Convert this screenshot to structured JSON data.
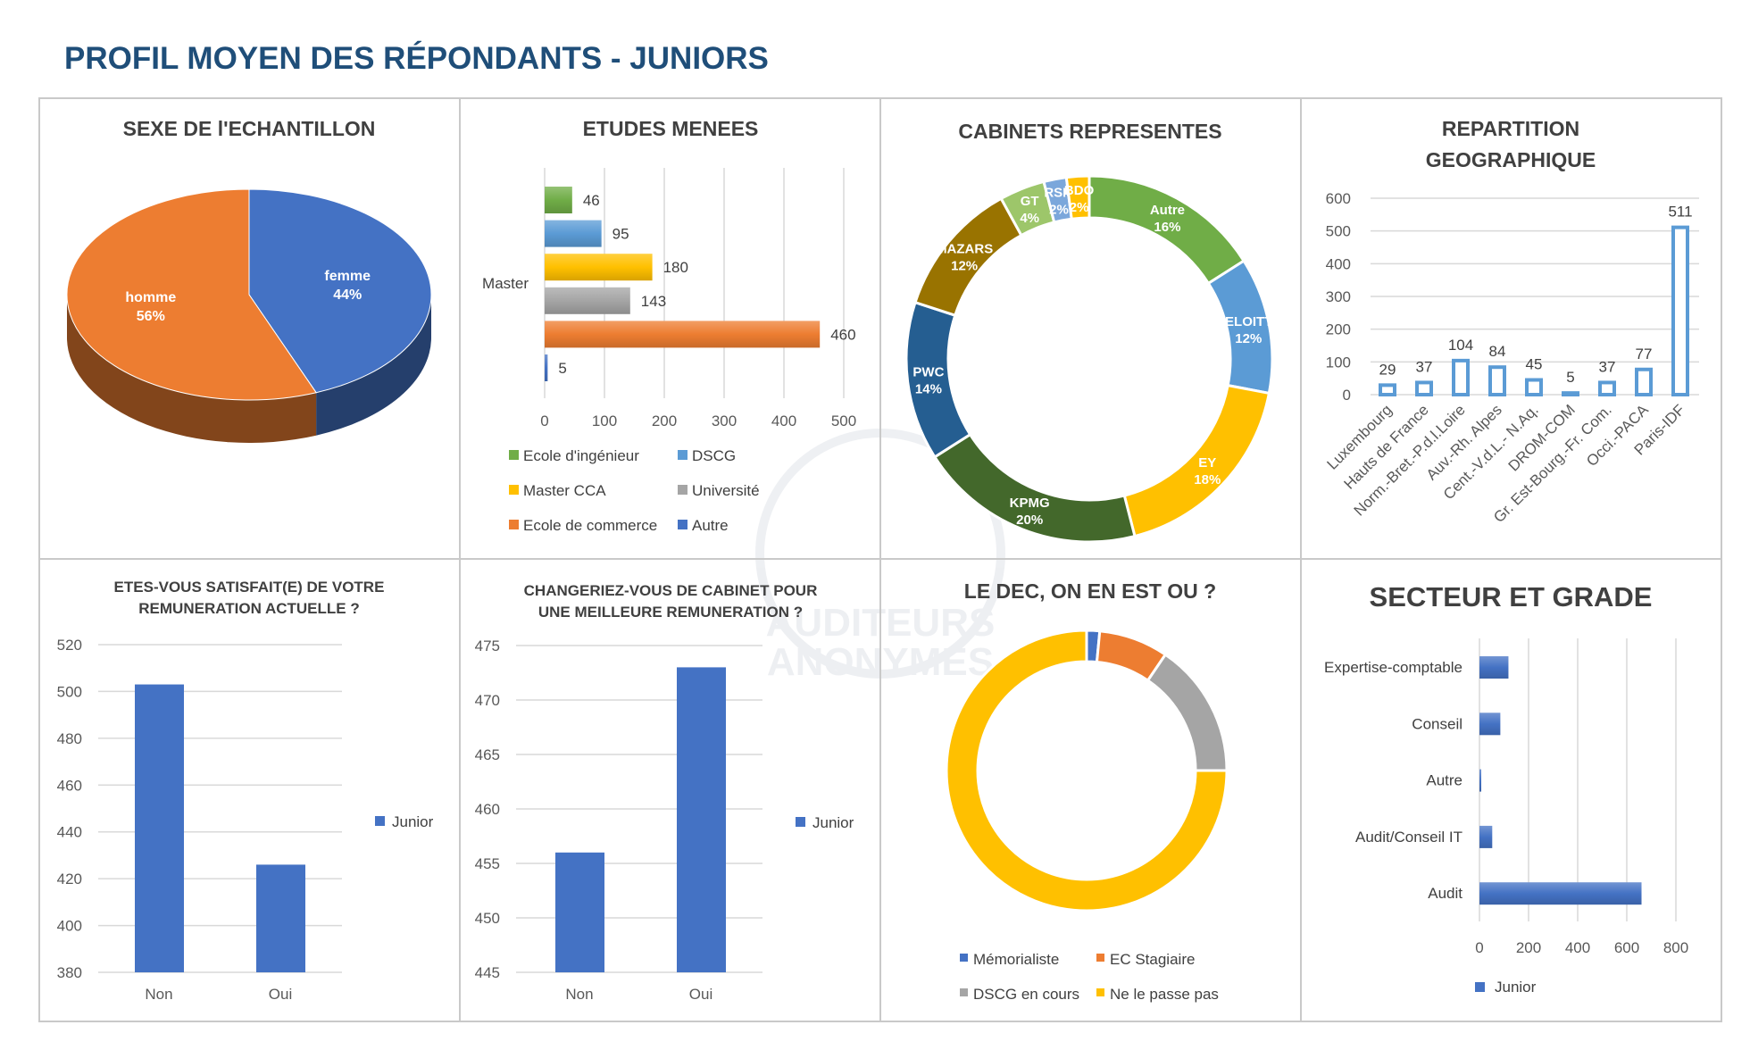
{
  "page_title": "PROFIL MOYEN DES RÉPONDANTS - JUNIORS",
  "watermark": [
    "AUDITEURS",
    "ANONYMES"
  ],
  "colors": {
    "title": "#1F4E79",
    "blue": "#4472C4",
    "orange": "#ED7D31",
    "grey": "#A5A5A5",
    "yellow": "#FFC000",
    "lightblue": "#5B9BD5",
    "green": "#70AD47"
  },
  "chart_data": [
    {
      "type": "pie",
      "title": "SEXE DE l'ECHANTILLON",
      "style": "3d",
      "slices": [
        {
          "label": "femme",
          "value": 44,
          "pct_label": "44%",
          "color": "#4472C4"
        },
        {
          "label": "homme",
          "value": 56,
          "pct_label": "56%",
          "color": "#ED7D31"
        }
      ]
    },
    {
      "type": "bar",
      "orientation": "horizontal",
      "title": "ETUDES MENEES",
      "category": "Master",
      "xlim": [
        0,
        500
      ],
      "ticks": [
        "0",
        "100",
        "200",
        "300",
        "400",
        "500"
      ],
      "grid": true,
      "legend": "bottom",
      "series": [
        {
          "name": "Ecole d'ingénieur",
          "value": 46,
          "color": "#70AD47"
        },
        {
          "name": "DSCG",
          "value": 95,
          "color": "#5B9BD5"
        },
        {
          "name": "Master CCA",
          "value": 180,
          "color": "#FFC000"
        },
        {
          "name": "Université",
          "value": 143,
          "color": "#A5A5A5"
        },
        {
          "name": "Ecole de commerce",
          "value": 460,
          "color": "#ED7D31"
        },
        {
          "name": "Autre",
          "value": 5,
          "color": "#4472C4"
        }
      ]
    },
    {
      "type": "pie",
      "style": "donut",
      "title": "CABINETS REPRESENTES",
      "slices": [
        {
          "label": "Autre",
          "value": 16,
          "pct_label": "16%",
          "color": "#70AD47"
        },
        {
          "label": "DELOITTE",
          "value": 12,
          "pct_label": "12%",
          "color": "#5B9BD5"
        },
        {
          "label": "EY",
          "value": 18,
          "pct_label": "18%",
          "color": "#FFC000"
        },
        {
          "label": "KPMG",
          "value": 20,
          "pct_label": "20%",
          "color": "#43682B"
        },
        {
          "label": "PWC",
          "value": 14,
          "pct_label": "14%",
          "color": "#255E91"
        },
        {
          "label": "MAZARS",
          "value": 12,
          "pct_label": "12%",
          "color": "#997300"
        },
        {
          "label": "GT",
          "value": 4,
          "pct_label": "4%",
          "color": "#9DC66A"
        },
        {
          "label": "RSM",
          "value": 2,
          "pct_label": "2%",
          "color": "#7BA7DB"
        },
        {
          "label": "BDO",
          "value": 2,
          "pct_label": "2%",
          "color": "#FFC000"
        }
      ]
    },
    {
      "type": "bar",
      "title": [
        "REPARTITION",
        "GEOGRAPHIQUE"
      ],
      "ylim": [
        0,
        600
      ],
      "ticks": [
        "0",
        "100",
        "200",
        "300",
        "400",
        "500",
        "600"
      ],
      "grid": true,
      "categories": [
        "Luxembourg",
        "Hauts de France",
        "Norm.-Bret.-P.d.l.Loire",
        "Auv.-Rh. Alpes",
        "Cent.-V.d.L.- N.Aq.",
        "DROM-COM",
        "Gr. Est-Bourg.-Fr. Com.",
        "Occi.-PACA",
        "Paris-IDF"
      ],
      "values": [
        29,
        37,
        104,
        84,
        45,
        5,
        37,
        77,
        511
      ],
      "value_labels": [
        "29",
        "37",
        "104",
        "84",
        "45",
        "5",
        "37",
        "77",
        "511"
      ],
      "color": "#5B9BD5"
    },
    {
      "type": "bar",
      "title": [
        "ETES-VOUS SATISFAIT(E) DE VOTRE",
        "REMUNERATION ACTUELLE ?"
      ],
      "ylim": [
        380,
        520
      ],
      "ticks": [
        "380",
        "400",
        "420",
        "440",
        "460",
        "480",
        "500",
        "520"
      ],
      "grid": true,
      "categories": [
        "Non",
        "Oui"
      ],
      "series": [
        {
          "name": "Junior",
          "values": [
            503,
            426
          ],
          "color": "#4472C4"
        }
      ],
      "legend": "right"
    },
    {
      "type": "bar",
      "title": [
        "CHANGERIEZ-VOUS DE CABINET POUR",
        "UNE MEILLEURE REMUNERATION ?"
      ],
      "ylim": [
        445,
        475
      ],
      "ticks": [
        "445",
        "450",
        "455",
        "460",
        "465",
        "470",
        "475"
      ],
      "grid": true,
      "categories": [
        "Non",
        "Oui"
      ],
      "series": [
        {
          "name": "Junior",
          "values": [
            456,
            473
          ],
          "color": "#4472C4"
        }
      ],
      "legend": "right"
    },
    {
      "type": "pie",
      "style": "donut",
      "title": "LE DEC, ON EN EST OU ?",
      "legend": "bottom",
      "slices": [
        {
          "label": "Mémorialiste",
          "value": 1.5,
          "color": "#4472C4"
        },
        {
          "label": "EC Stagiaire",
          "value": 8,
          "color": "#ED7D31"
        },
        {
          "label": "DSCG en cours",
          "value": 15.5,
          "color": "#A5A5A5"
        },
        {
          "label": "Ne le passe pas",
          "value": 75,
          "color": "#FFC000"
        }
      ]
    },
    {
      "type": "bar",
      "orientation": "horizontal",
      "title": "SECTEUR ET GRADE",
      "xlim": [
        0,
        800
      ],
      "ticks": [
        "0",
        "200",
        "400",
        "600",
        "800"
      ],
      "grid": true,
      "categories": [
        "Expertise-comptable",
        "Conseil",
        "Autre",
        "Audit/Conseil IT",
        "Audit"
      ],
      "series": [
        {
          "name": "Junior",
          "values": [
            118,
            85,
            5,
            52,
            660
          ],
          "color": "#4472C4"
        }
      ],
      "legend": "bottom"
    }
  ]
}
